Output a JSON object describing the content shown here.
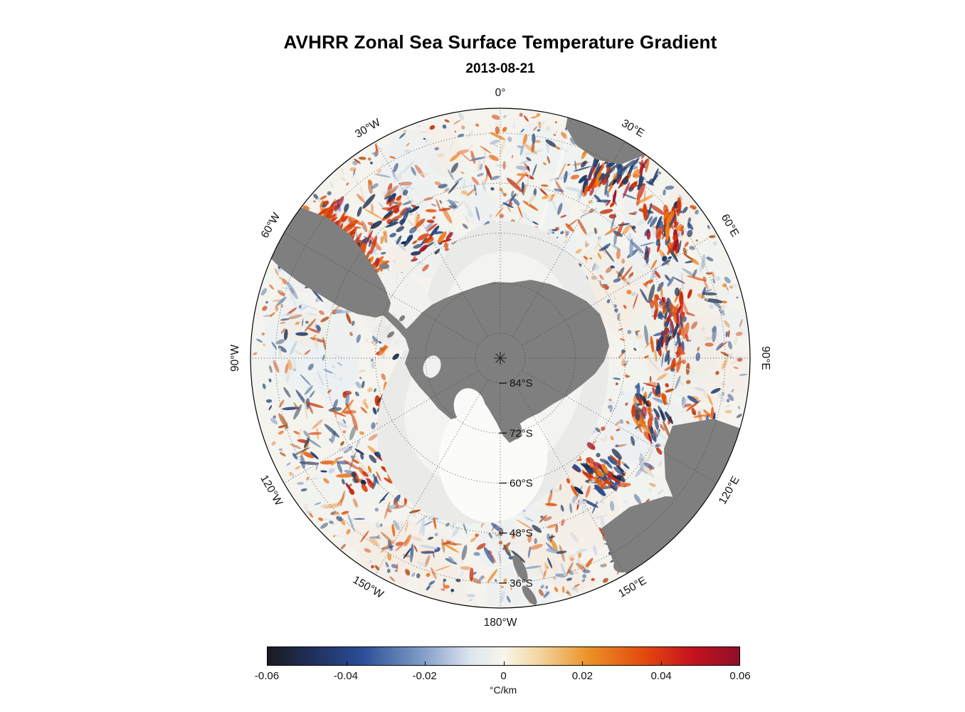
{
  "title": "AVHRR Zonal Sea Surface Temperature Gradient",
  "subtitle": "2013-08-21",
  "chart_data": {
    "type": "heatmap",
    "projection": "south-polar-stereographic",
    "title": "AVHRR Zonal Sea Surface Temperature Gradient",
    "subtitle": "2013-08-21",
    "variable": "zonal sea surface temperature gradient",
    "units": "°C/km",
    "grid": {
      "meridian_step_deg": 30,
      "parallel_step_deg": 12,
      "outer_latitude_deg": -30,
      "style": "dotted"
    },
    "meridians": [
      {
        "deg": 0,
        "label": "0°"
      },
      {
        "deg": 30,
        "label": "30°E"
      },
      {
        "deg": 60,
        "label": "60°E"
      },
      {
        "deg": 90,
        "label": "90°E"
      },
      {
        "deg": 120,
        "label": "120°E"
      },
      {
        "deg": 150,
        "label": "150°E"
      },
      {
        "deg": 180,
        "label": "180°W"
      },
      {
        "deg": 210,
        "label": "150°W"
      },
      {
        "deg": 240,
        "label": "120°W"
      },
      {
        "deg": 270,
        "label": "90°W"
      },
      {
        "deg": 300,
        "label": "60°W"
      },
      {
        "deg": 330,
        "label": "30°W"
      }
    ],
    "parallels": [
      {
        "lat": 84,
        "label": "84°S"
      },
      {
        "lat": 72,
        "label": "72°S"
      },
      {
        "lat": 60,
        "label": "60°S"
      },
      {
        "lat": 48,
        "label": "48°S"
      },
      {
        "lat": 36,
        "label": "36°S"
      }
    ],
    "colorbar": {
      "min": -0.06,
      "max": 0.06,
      "tick_labels": [
        "-0.06",
        "-0.04",
        "-0.02",
        "0",
        "0.02",
        "0.04",
        "0.06"
      ],
      "unit": "°C/km",
      "stops": [
        {
          "pos": 0.0,
          "color": "#1b1b1f"
        },
        {
          "pos": 0.1,
          "color": "#20315e"
        },
        {
          "pos": 0.2,
          "color": "#2b4d96"
        },
        {
          "pos": 0.32,
          "color": "#7b97c6"
        },
        {
          "pos": 0.43,
          "color": "#dde6ee"
        },
        {
          "pos": 0.5,
          "color": "#f8f5ec"
        },
        {
          "pos": 0.57,
          "color": "#f3d9a6"
        },
        {
          "pos": 0.68,
          "color": "#eb9226"
        },
        {
          "pos": 0.8,
          "color": "#e4480e"
        },
        {
          "pos": 0.9,
          "color": "#c5131d"
        },
        {
          "pos": 1.0,
          "color": "#8e0f2a"
        }
      ]
    },
    "colors": {
      "land": "#7f7f7f",
      "ice": "#eaebe8",
      "ocean_base": "#f5f3ee",
      "ocean_tints": [
        "#e9eff4",
        "#f4ece1",
        "#eef3f0"
      ],
      "positive_palette": [
        "#d94f1e",
        "#e8731f",
        "#c2330f",
        "#f09a40",
        "#e05a12",
        "#b3541e"
      ],
      "negative_palette": [
        "#2e4f8f",
        "#41628f",
        "#1d3a6e",
        "#6e86ad",
        "#3b4a5f",
        "#8fa8c8"
      ],
      "neutral_palette": [
        "#d8e2ea",
        "#e8dcc8",
        "#c9d5e1"
      ],
      "strong_positive": [
        "#cc2a0e",
        "#e2570f",
        "#a5122a",
        "#ef7d16",
        "#d93b05"
      ],
      "strong_negative": [
        "#1d3a6e",
        "#2c4f8c",
        "#15294e",
        "#243f66"
      ]
    }
  }
}
